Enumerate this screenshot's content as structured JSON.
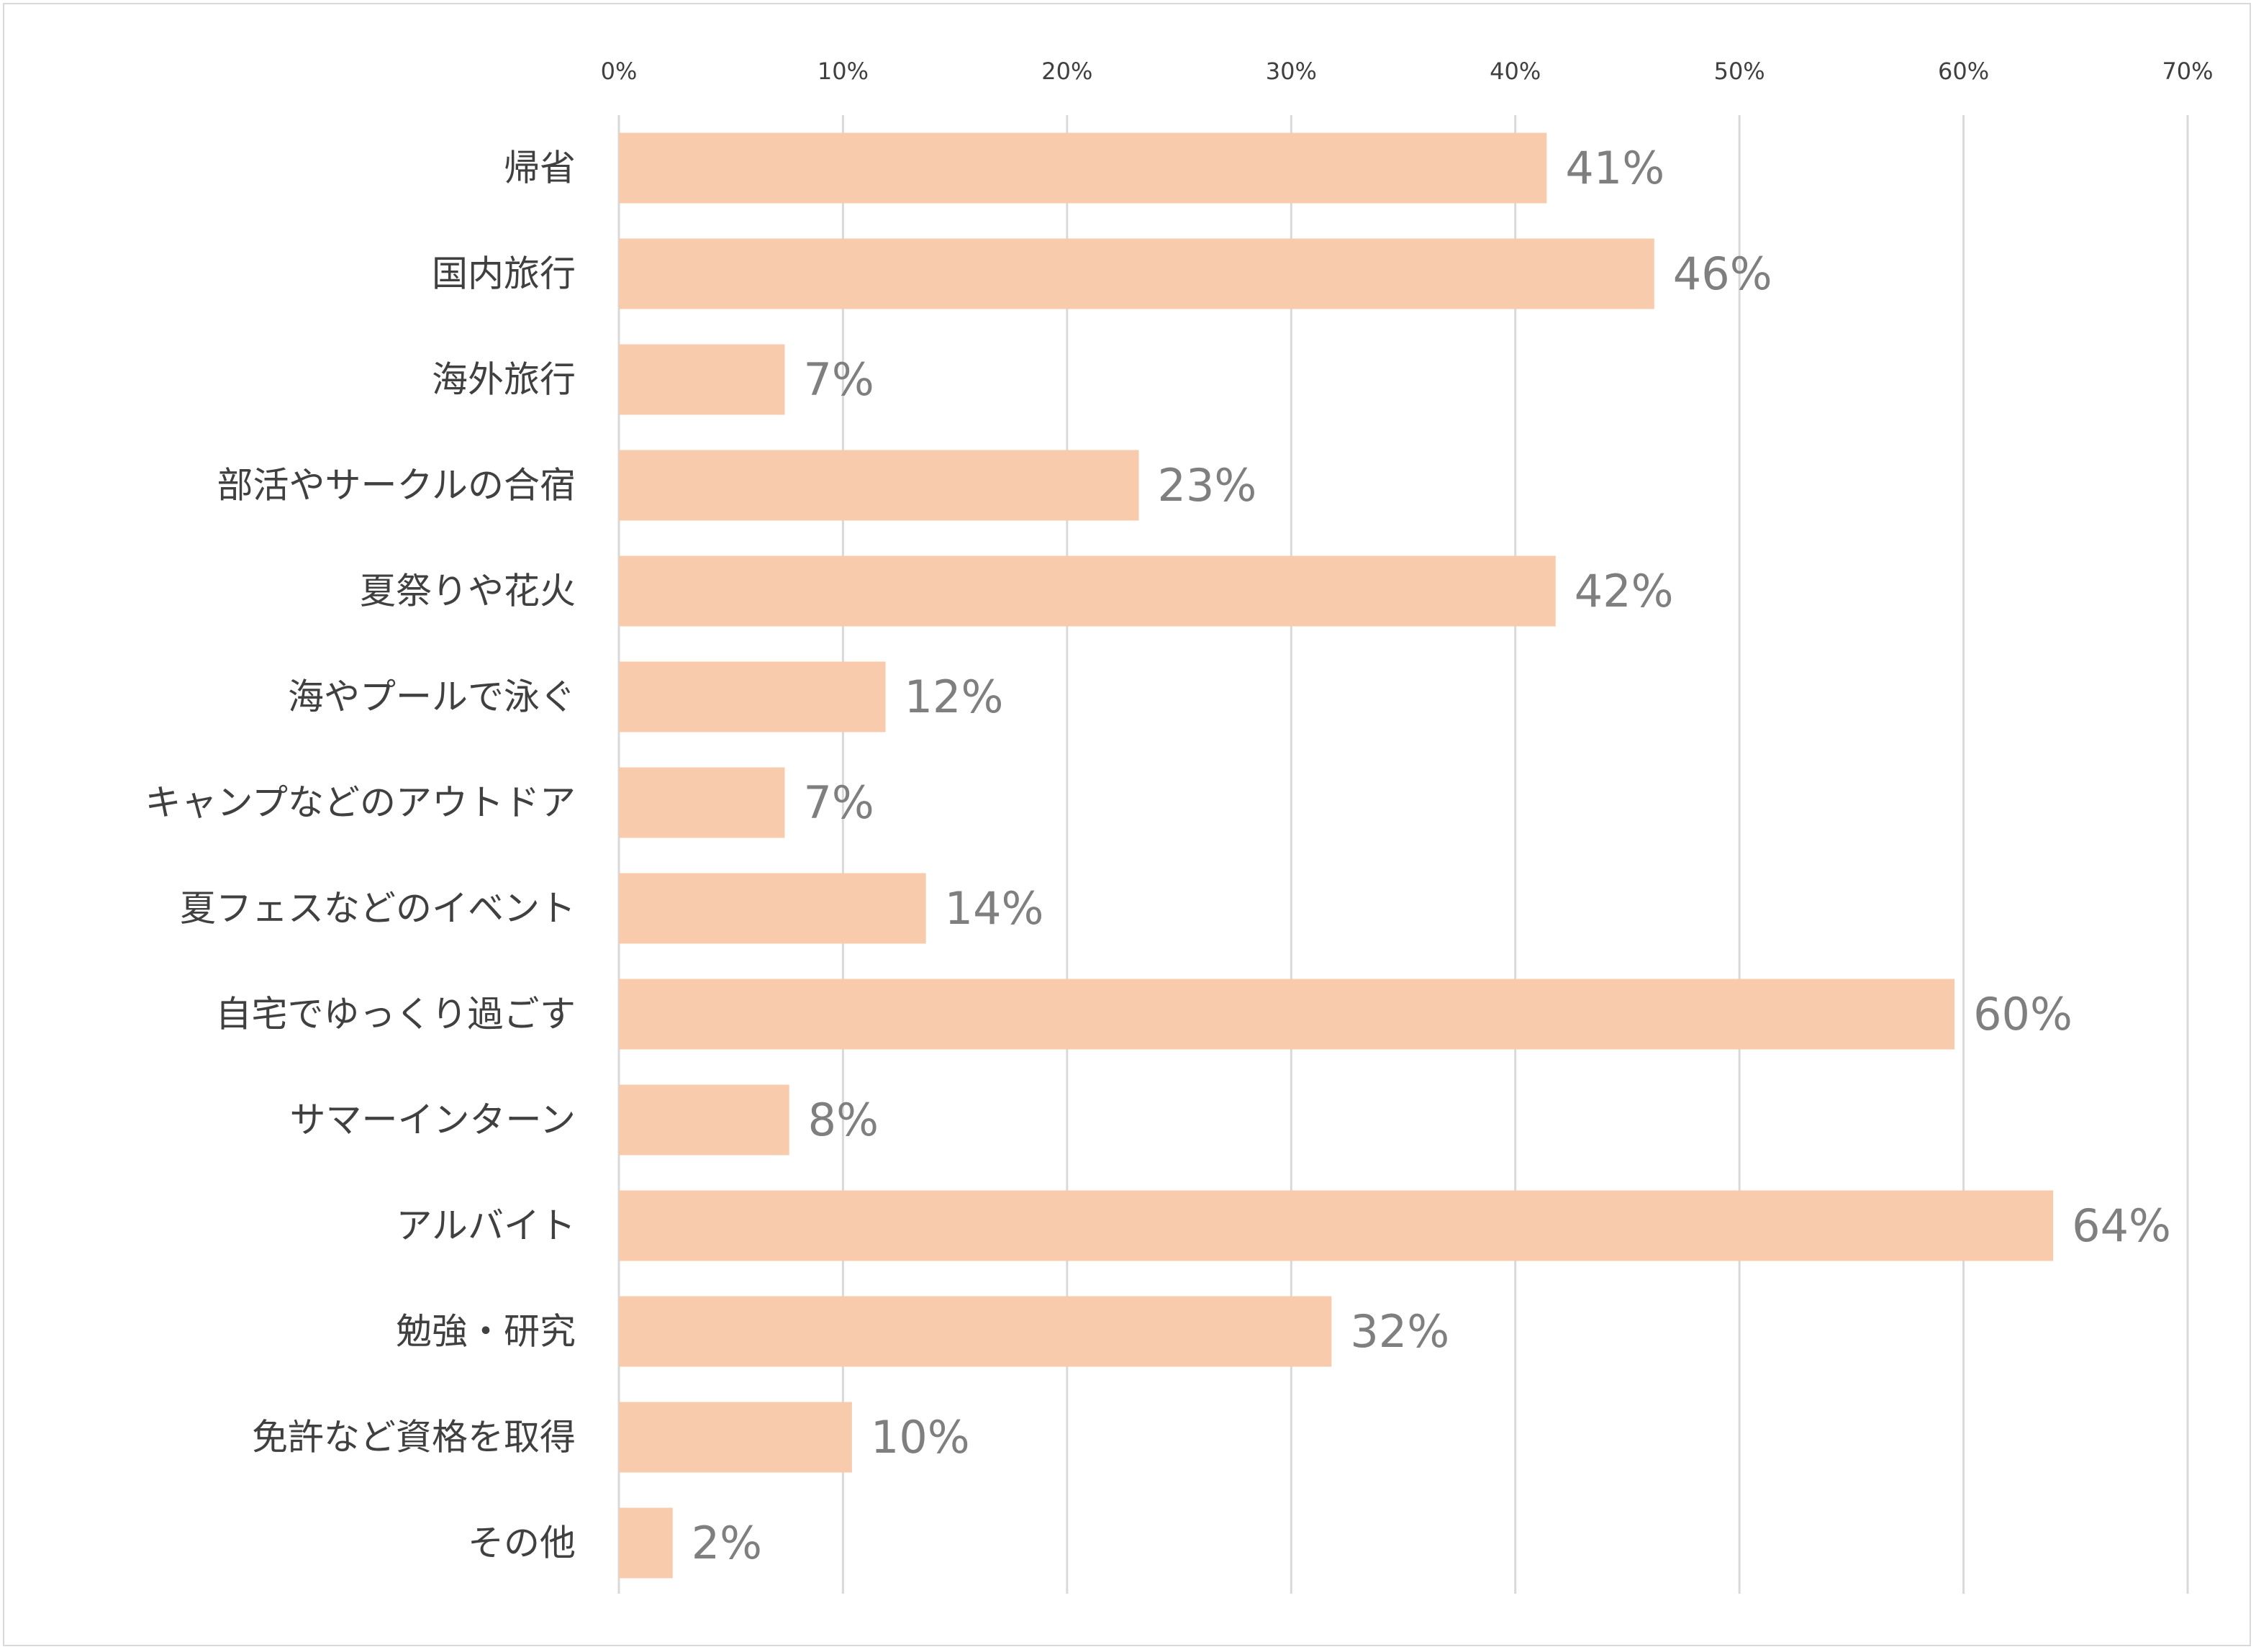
{
  "chart_data": {
    "type": "bar",
    "orientation": "horizontal",
    "categories": [
      "帰省",
      "国内旅行",
      "海外旅行",
      "部活やサークルの合宿",
      "夏祭りや花火",
      "海やプールで泳ぐ",
      "キャンプなどのアウトドア",
      "夏フェスなどのイベント",
      "自宅でゆっくり過ごす",
      "サマーインターン",
      "アルバイト",
      "勉強・研究",
      "免許など資格を取得",
      "その他"
    ],
    "values": [
      41.4,
      46.2,
      7.4,
      23.2,
      41.8,
      11.9,
      7.4,
      13.7,
      59.6,
      7.6,
      64.0,
      31.8,
      10.4,
      2.4
    ],
    "data_labels": [
      "41%",
      "46%",
      "7%",
      "23%",
      "42%",
      "12%",
      "7%",
      "14%",
      "60%",
      "8%",
      "64%",
      "32%",
      "10%",
      "2%"
    ],
    "x_ticks": [
      0,
      10,
      20,
      30,
      40,
      50,
      60,
      70
    ],
    "x_tick_labels": [
      "0%",
      "10%",
      "20%",
      "30%",
      "40%",
      "50%",
      "60%",
      "70%"
    ],
    "xlim": [
      0,
      70
    ],
    "x_axis_position": "top",
    "grid": true,
    "legend": false,
    "title": "",
    "xlabel": "",
    "ylabel": "",
    "colors": {
      "bar": "#F8CBAD",
      "grid": "#D9D9D9",
      "category_text": "#404040",
      "data_label_text": "#7F7F7F",
      "frame": "#D9D9D9"
    }
  }
}
